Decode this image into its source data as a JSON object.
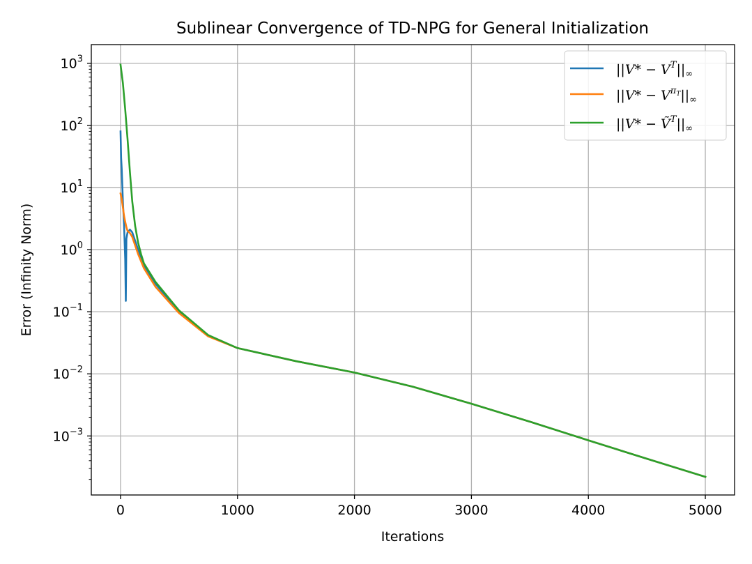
{
  "chart_data": {
    "type": "line",
    "title": "Sublinear Convergence of TD-NPG for General Initialization",
    "xlabel": "Iterations",
    "ylabel": "Error (Infinity Norm)",
    "xlim": [
      -250,
      5250
    ],
    "ylim_log10": [
      -3.95,
      3.3
    ],
    "yscale": "log",
    "grid": true,
    "legend_position": "top-right",
    "x_ticks": [
      0,
      1000,
      2000,
      3000,
      4000,
      5000
    ],
    "x_tick_labels": [
      "0",
      "1000",
      "2000",
      "3000",
      "4000",
      "5000"
    ],
    "y_tick_exponents": [
      3,
      2,
      1,
      0,
      -1,
      -2,
      -3
    ],
    "y_tick_labels": [
      {
        "base": "10",
        "exp": "3"
      },
      {
        "base": "10",
        "exp": "2"
      },
      {
        "base": "10",
        "exp": "1"
      },
      {
        "base": "10",
        "exp": "0"
      },
      {
        "base": "10",
        "exp": "−1"
      },
      {
        "base": "10",
        "exp": "−2"
      },
      {
        "base": "10",
        "exp": "−3"
      }
    ],
    "series": [
      {
        "name": "||V* − V^T||∞",
        "color": "#1f77b4",
        "x": [
          0,
          5,
          10,
          20,
          30,
          40,
          45,
          50,
          60,
          80,
          100,
          150,
          200,
          300,
          500,
          750,
          1000,
          1500,
          2000,
          2500,
          3000,
          3500,
          4000,
          4500,
          5000
        ],
        "y": [
          80,
          30,
          20,
          6,
          2.5,
          0.7,
          0.15,
          1.5,
          1.9,
          2.1,
          1.9,
          1.0,
          0.55,
          0.28,
          0.1,
          0.041,
          0.026,
          0.016,
          0.0105,
          0.0062,
          0.0033,
          0.0017,
          0.00085,
          0.00043,
          0.00022
        ]
      },
      {
        "name": "||V* − V^{π_T}||∞",
        "color": "#ff7f0e",
        "x": [
          0,
          10,
          20,
          30,
          40,
          50,
          60,
          80,
          100,
          150,
          200,
          300,
          500,
          750,
          1000,
          1500,
          2000,
          2500,
          3000,
          3500,
          4000,
          4500,
          5000
        ],
        "y": [
          8,
          6.5,
          4.8,
          3.5,
          2.8,
          2.3,
          2.0,
          1.85,
          1.6,
          0.85,
          0.5,
          0.25,
          0.095,
          0.04,
          0.026,
          0.016,
          0.0105,
          0.0062,
          0.0033,
          0.0017,
          0.00085,
          0.00043,
          0.00022
        ]
      },
      {
        "name": "||V* − Ṽ^T||∞",
        "color": "#2ca02c",
        "x": [
          0,
          20,
          40,
          60,
          80,
          100,
          125,
          150,
          175,
          200,
          300,
          500,
          750,
          1000,
          1500,
          2000,
          2500,
          3000,
          3500,
          4000,
          4500,
          5000
        ],
        "y": [
          950,
          480,
          180,
          60,
          18,
          6,
          2.4,
          1.3,
          0.85,
          0.6,
          0.3,
          0.105,
          0.042,
          0.026,
          0.016,
          0.0105,
          0.0062,
          0.0033,
          0.0017,
          0.00085,
          0.00043,
          0.00022
        ]
      }
    ]
  },
  "legend": {
    "items": [
      {
        "pre": "||",
        "v": "V",
        "star": "*",
        "minus": " − ",
        "v2": "V",
        "sup": "T",
        "post": "||",
        "sub": "∞"
      },
      {
        "pre": "||",
        "v": "V",
        "star": "*",
        "minus": " − ",
        "v2": "V",
        "sup": "π",
        "supsub": "T",
        "post": "||",
        "sub": "∞"
      },
      {
        "pre": "||",
        "v": "V",
        "star": "*",
        "minus": " − ",
        "v2": "Ṽ",
        "sup": "T",
        "post": "||",
        "sub": "∞"
      }
    ]
  }
}
